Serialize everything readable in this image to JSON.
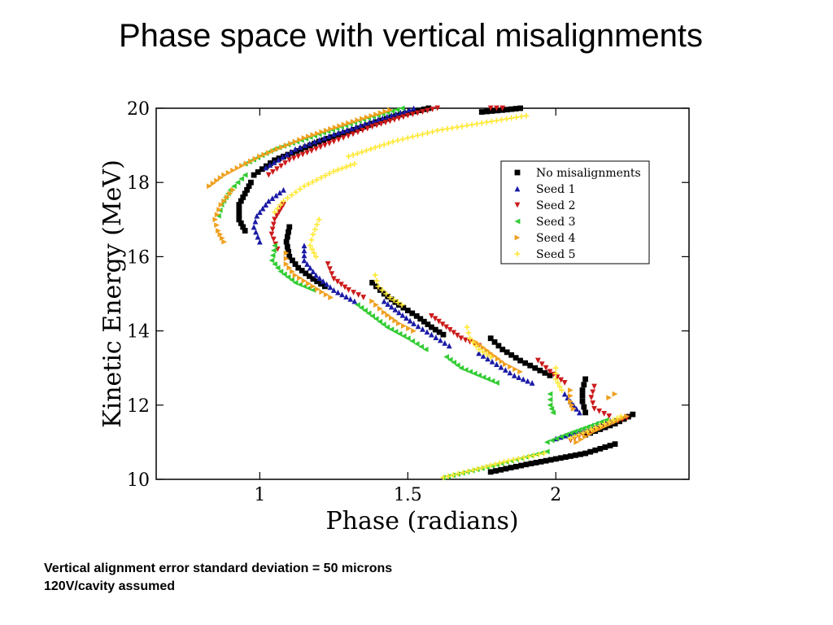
{
  "slide": {
    "title": "Phase space with vertical misalignments",
    "notes": [
      "Vertical alignment error standard deviation = 50 microns",
      "120V/cavity assumed"
    ]
  },
  "chart_data": {
    "type": "scatter",
    "title": "",
    "xlabel": "Phase (radians)",
    "ylabel": "Kinetic Energy (MeV)",
    "xlim": [
      0.65,
      2.45
    ],
    "ylim": [
      10,
      20
    ],
    "xticks": [
      1,
      1.5,
      2
    ],
    "xtick_labels": [
      "1",
      "1.5",
      "2"
    ],
    "yticks": [
      10,
      12,
      14,
      16,
      18,
      20
    ],
    "ytick_labels": [
      "10",
      "12",
      "14",
      "16",
      "18",
      "20"
    ],
    "grid": false,
    "legend_position": "upper-right",
    "series": [
      {
        "name": "No misalignments",
        "marker": "square",
        "color": "#000000",
        "segments": [
          [
            [
              1.57,
              20
            ],
            [
              1.46,
              19.8
            ],
            [
              1.35,
              19.5
            ],
            [
              1.2,
              19.1
            ],
            [
              1.05,
              18.6
            ],
            [
              0.98,
              18.2
            ]
          ],
          [
            [
              0.97,
              18
            ],
            [
              0.95,
              17.7
            ],
            [
              0.93,
              17.4
            ],
            [
              0.93,
              17.0
            ],
            [
              0.95,
              16.7
            ]
          ],
          [
            [
              1.1,
              16.8
            ],
            [
              1.09,
              16.4
            ],
            [
              1.1,
              16.0
            ],
            [
              1.13,
              15.7
            ],
            [
              1.18,
              15.4
            ],
            [
              1.22,
              15.2
            ]
          ],
          [
            [
              1.38,
              15.3
            ],
            [
              1.42,
              15.0
            ],
            [
              1.47,
              14.7
            ],
            [
              1.53,
              14.4
            ],
            [
              1.58,
              14.1
            ],
            [
              1.62,
              13.9
            ]
          ],
          [
            [
              1.78,
              13.8
            ],
            [
              1.82,
              13.5
            ],
            [
              1.88,
              13.2
            ],
            [
              1.93,
              13.0
            ],
            [
              1.98,
              12.8
            ]
          ],
          [
            [
              2.1,
              12.7
            ],
            [
              2.09,
              12.4
            ],
            [
              2.09,
              12.1
            ],
            [
              2.1,
              11.8
            ]
          ],
          [
            [
              2.1,
              11.2
            ],
            [
              2.15,
              11.35
            ],
            [
              2.2,
              11.5
            ],
            [
              2.26,
              11.75
            ]
          ],
          [
            [
              1.78,
              10.2
            ],
            [
              1.9,
              10.4
            ],
            [
              2.0,
              10.55
            ],
            [
              2.1,
              10.7
            ],
            [
              2.2,
              10.95
            ]
          ],
          [
            [
              1.75,
              19.9
            ],
            [
              1.82,
              19.95
            ],
            [
              1.88,
              20
            ]
          ]
        ]
      },
      {
        "name": "Seed 1",
        "marker": "triangle-up",
        "color": "#1a1aa6",
        "segments": [
          [
            [
              1.52,
              20
            ],
            [
              1.4,
              19.7
            ],
            [
              1.25,
              19.3
            ],
            [
              1.12,
              18.9
            ],
            [
              1.02,
              18.4
            ]
          ],
          [
            [
              1.08,
              17.8
            ],
            [
              1.03,
              17.5
            ],
            [
              0.99,
              17.1
            ],
            [
              0.98,
              16.8
            ],
            [
              1.0,
              16.4
            ]
          ],
          [
            [
              1.15,
              16.3
            ],
            [
              1.15,
              15.9
            ],
            [
              1.19,
              15.5
            ],
            [
              1.25,
              15.1
            ],
            [
              1.32,
              14.8
            ]
          ],
          [
            [
              1.42,
              14.8
            ],
            [
              1.47,
              14.5
            ],
            [
              1.52,
              14.2
            ],
            [
              1.58,
              13.9
            ],
            [
              1.64,
              13.6
            ]
          ],
          [
            [
              1.74,
              13.4
            ],
            [
              1.8,
              13.1
            ],
            [
              1.86,
              12.8
            ],
            [
              1.92,
              12.6
            ]
          ],
          [
            [
              2.03,
              12.3
            ],
            [
              2.06,
              12.0
            ],
            [
              2.08,
              11.8
            ]
          ],
          [
            [
              2.0,
              11.1
            ],
            [
              2.08,
              11.3
            ],
            [
              2.14,
              11.5
            ],
            [
              2.2,
              11.6
            ]
          ]
        ]
      },
      {
        "name": "Seed 2",
        "marker": "triangle-down",
        "color": "#cc1a1a",
        "segments": [
          [
            [
              1.6,
              20
            ],
            [
              1.5,
              19.8
            ],
            [
              1.38,
              19.5
            ],
            [
              1.25,
              19.1
            ],
            [
              1.1,
              18.6
            ],
            [
              1.03,
              18.2
            ]
          ],
          [
            [
              1.08,
              17.4
            ],
            [
              1.05,
              17.0
            ],
            [
              1.04,
              16.6
            ],
            [
              1.06,
              16.2
            ]
          ],
          [
            [
              1.23,
              15.8
            ],
            [
              1.25,
              15.4
            ],
            [
              1.3,
              15.1
            ],
            [
              1.35,
              14.9
            ]
          ],
          [
            [
              1.58,
              14.4
            ],
            [
              1.63,
              14.1
            ],
            [
              1.68,
              13.8
            ],
            [
              1.74,
              13.6
            ]
          ],
          [
            [
              1.94,
              13.2
            ],
            [
              1.98,
              12.9
            ],
            [
              2.03,
              12.6
            ]
          ],
          [
            [
              2.13,
              12.5
            ],
            [
              2.12,
              12.2
            ],
            [
              2.13,
              11.9
            ],
            [
              2.18,
              11.7
            ]
          ],
          [
            [
              2.05,
              11.05
            ],
            [
              2.12,
              11.3
            ],
            [
              2.18,
              11.5
            ],
            [
              2.24,
              11.65
            ]
          ],
          [
            [
              1.78,
              20
            ],
            [
              1.82,
              20
            ]
          ]
        ]
      },
      {
        "name": "Seed 3",
        "marker": "triangle-left",
        "color": "#33cc33",
        "segments": [
          [
            [
              1.48,
              20
            ],
            [
              1.35,
              19.7
            ],
            [
              1.2,
              19.3
            ],
            [
              1.05,
              18.9
            ],
            [
              0.95,
              18.5
            ]
          ],
          [
            [
              0.95,
              18.2
            ],
            [
              0.9,
              17.8
            ],
            [
              0.87,
              17.4
            ],
            [
              0.86,
              17.1
            ]
          ],
          [
            [
              1.05,
              16.3
            ],
            [
              1.04,
              15.9
            ],
            [
              1.07,
              15.6
            ],
            [
              1.12,
              15.3
            ],
            [
              1.18,
              15.1
            ]
          ],
          [
            [
              1.33,
              14.7
            ],
            [
              1.38,
              14.4
            ],
            [
              1.43,
              14.1
            ],
            [
              1.5,
              13.8
            ],
            [
              1.56,
              13.5
            ]
          ],
          [
            [
              1.63,
              13.3
            ],
            [
              1.68,
              13.0
            ],
            [
              1.74,
              12.8
            ],
            [
              1.8,
              12.6
            ]
          ],
          [
            [
              1.98,
              12.3
            ],
            [
              1.98,
              12.0
            ],
            [
              1.99,
              11.8
            ]
          ],
          [
            [
              1.97,
              11.0
            ],
            [
              2.05,
              11.25
            ],
            [
              2.12,
              11.45
            ],
            [
              2.17,
              11.6
            ]
          ],
          [
            [
              1.62,
              10.05
            ],
            [
              1.7,
              10.2
            ],
            [
              1.8,
              10.4
            ],
            [
              1.9,
              10.6
            ],
            [
              1.97,
              10.75
            ]
          ]
        ]
      },
      {
        "name": "Seed 4",
        "marker": "triangle-right",
        "color": "#f0a020",
        "segments": [
          [
            [
              1.44,
              19.95
            ],
            [
              1.3,
              19.6
            ],
            [
              1.15,
              19.2
            ],
            [
              1.0,
              18.7
            ],
            [
              0.88,
              18.2
            ],
            [
              0.83,
              17.9
            ]
          ],
          [
            [
              0.91,
              17.8
            ],
            [
              0.87,
              17.4
            ],
            [
              0.85,
              17.0
            ],
            [
              0.86,
              16.7
            ],
            [
              0.88,
              16.4
            ]
          ],
          [
            [
              1.09,
              16.1
            ],
            [
              1.09,
              15.8
            ],
            [
              1.12,
              15.5
            ],
            [
              1.18,
              15.2
            ],
            [
              1.24,
              14.9
            ]
          ],
          [
            [
              1.38,
              14.8
            ],
            [
              1.42,
              14.5
            ],
            [
              1.47,
              14.2
            ],
            [
              1.52,
              14.0
            ]
          ],
          [
            [
              1.73,
              13.7
            ],
            [
              1.78,
              13.4
            ],
            [
              1.83,
              13.1
            ],
            [
              1.88,
              12.9
            ]
          ],
          [
            [
              2.05,
              12.4
            ],
            [
              2.05,
              12.1
            ],
            [
              2.06,
              11.9
            ]
          ],
          [
            [
              2.07,
              11.0
            ],
            [
              2.13,
              11.3
            ],
            [
              2.2,
              11.55
            ],
            [
              2.24,
              11.7
            ]
          ],
          [
            [
              2.18,
              12.2
            ],
            [
              2.2,
              12.3
            ]
          ]
        ]
      },
      {
        "name": "Seed 5",
        "marker": "plus",
        "color": "#ffe833",
        "segments": [
          [
            [
              1.9,
              19.8
            ],
            [
              1.75,
              19.6
            ],
            [
              1.6,
              19.4
            ],
            [
              1.45,
              19.1
            ],
            [
              1.3,
              18.7
            ]
          ],
          [
            [
              1.32,
              18.5
            ],
            [
              1.25,
              18.3
            ],
            [
              1.15,
              17.9
            ],
            [
              1.08,
              17.5
            ],
            [
              1.05,
              17.2
            ]
          ],
          [
            [
              1.2,
              17.0
            ],
            [
              1.18,
              16.6
            ],
            [
              1.17,
              16.3
            ],
            [
              1.19,
              16.0
            ]
          ],
          [
            [
              1.39,
              15.5
            ],
            [
              1.4,
              15.2
            ],
            [
              1.44,
              14.9
            ],
            [
              1.48,
              14.7
            ]
          ],
          [
            [
              1.7,
              14.1
            ],
            [
              1.71,
              13.8
            ],
            [
              1.74,
              13.5
            ],
            [
              1.78,
              13.3
            ]
          ],
          [
            [
              2.0,
              13.0
            ],
            [
              2.0,
              12.7
            ],
            [
              2.02,
              12.4
            ]
          ],
          [
            [
              2.05,
              11.1
            ],
            [
              2.12,
              11.35
            ],
            [
              2.18,
              11.55
            ],
            [
              2.22,
              11.7
            ]
          ],
          [
            [
              1.62,
              10.05
            ],
            [
              1.72,
              10.25
            ],
            [
              1.84,
              10.5
            ],
            [
              1.96,
              10.7
            ]
          ]
        ]
      }
    ]
  }
}
